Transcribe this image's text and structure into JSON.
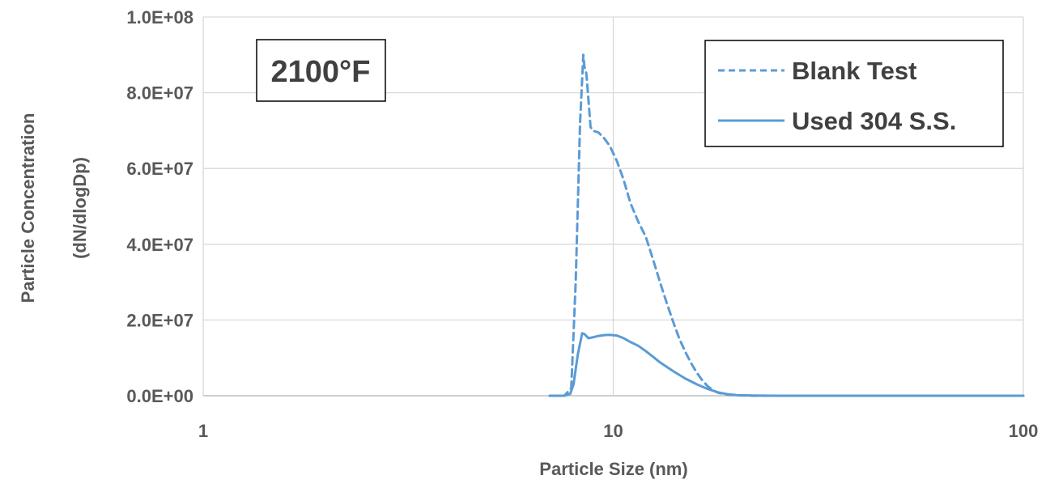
{
  "chart_data": {
    "type": "line",
    "title": "",
    "annotation": "2100°F",
    "xlabel": "Particle Size (nm)",
    "ylabel_lines": [
      "Particle Concentration",
      "(dN/dlogDp)"
    ],
    "x_scale": "log",
    "xlim": [
      1,
      100
    ],
    "ylim": [
      0,
      100000000
    ],
    "x_ticks": [
      1,
      10,
      100
    ],
    "x_tick_labels": [
      "1",
      "10",
      "100"
    ],
    "y_ticks": [
      0,
      20000000,
      40000000,
      60000000,
      80000000,
      100000000
    ],
    "y_tick_labels": [
      "0.0E+00",
      "2.0E+07",
      "4.0E+07",
      "6.0E+07",
      "8.0E+07",
      "1.0E+08"
    ],
    "grid": "major x and y",
    "legend_position": "top-right",
    "colors": {
      "series": "#5b9bd5",
      "grid": "#d9d9d9",
      "axis": "#bfbfbf",
      "frame": "#000000"
    },
    "series": [
      {
        "name": "Blank Test",
        "style": "dashed",
        "x": [
          7.0,
          7.6,
          7.9,
          8.1,
          8.3,
          8.45,
          8.5,
          8.6,
          8.7,
          8.8,
          8.9,
          9.2,
          9.5,
          9.8,
          10.2,
          10.6,
          11.0,
          11.5,
          12.0,
          12.5,
          13.0,
          13.5,
          14.0,
          14.5,
          15.0,
          15.5,
          16.0,
          16.5,
          17.0,
          17.5,
          18.0,
          19.0,
          20.0,
          22.0,
          25.0,
          30.0,
          40.0,
          60.0,
          100.0
        ],
        "y": [
          0,
          0,
          2000000,
          30000000,
          72000000,
          90000000,
          87000000,
          85000000,
          78000000,
          71000000,
          70000000,
          69500000,
          68000000,
          66000000,
          62000000,
          57000000,
          51000000,
          46000000,
          42000000,
          36000000,
          30000000,
          24500000,
          19500000,
          15000000,
          11500000,
          8500000,
          6000000,
          4000000,
          2500000,
          1500000,
          800000,
          300000,
          100000,
          0,
          0,
          0,
          0,
          0,
          0
        ]
      },
      {
        "name": "Used 304 S.S.",
        "style": "solid",
        "x": [
          7.0,
          7.6,
          7.85,
          8.0,
          8.2,
          8.4,
          8.5,
          8.7,
          8.9,
          9.2,
          9.5,
          9.8,
          10.2,
          10.6,
          11.0,
          11.5,
          12.0,
          12.5,
          13.0,
          14.0,
          15.0,
          16.0,
          17.0,
          18.0,
          19.0,
          20.0,
          22.0,
          25.0,
          30.0,
          40.0,
          60.0,
          100.0
        ],
        "y": [
          0,
          0,
          500000,
          3000000,
          11000000,
          16500000,
          16300000,
          15200000,
          15400000,
          15800000,
          16000000,
          16100000,
          15900000,
          15200000,
          14200000,
          13200000,
          11800000,
          10300000,
          8800000,
          6500000,
          4500000,
          3000000,
          1800000,
          900000,
          400000,
          150000,
          50000,
          0,
          0,
          0,
          0,
          0
        ]
      }
    ]
  }
}
